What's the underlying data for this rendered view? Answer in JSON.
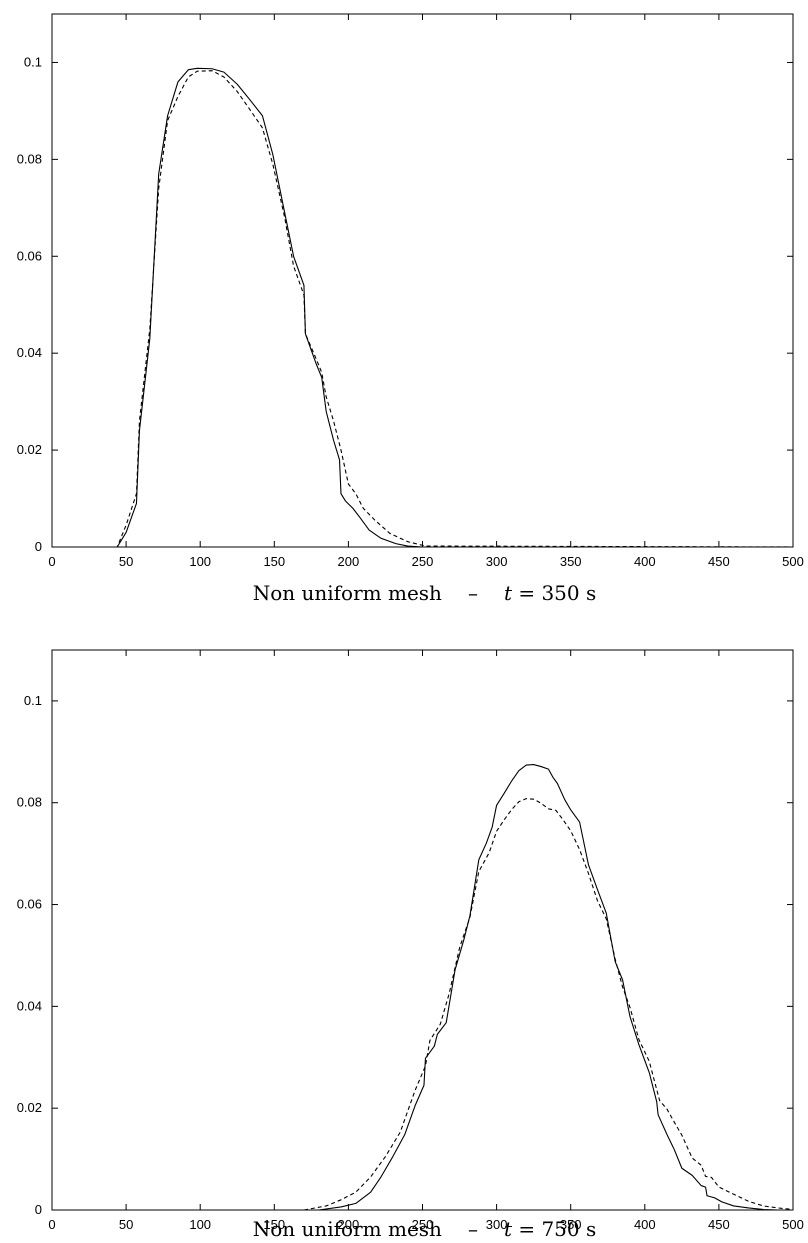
{
  "chart_data": [
    {
      "type": "line",
      "title": "",
      "caption_parts": {
        "left": "Non uniform mesh",
        "dash": "–",
        "var": "t",
        "eq": " = 350 s"
      },
      "xlabel": "",
      "ylabel": "",
      "xlim": [
        0,
        500
      ],
      "ylim": [
        0,
        0.11
      ],
      "xticks": [
        0,
        50,
        100,
        150,
        200,
        250,
        300,
        350,
        400,
        450,
        500
      ],
      "yticks": [
        0,
        0.02,
        0.04,
        0.06,
        0.08,
        0.1
      ],
      "ytick_labels": [
        "0",
        "0.02",
        "0.04",
        "0.06",
        "0.08",
        "0.1"
      ],
      "grid": false,
      "series": [
        {
          "style": "solid",
          "x": [
            0,
            44,
            50,
            57,
            59,
            66,
            72,
            78,
            85,
            92,
            98,
            108,
            116,
            125,
            133,
            142,
            149,
            157,
            163,
            170,
            171,
            178,
            182,
            185,
            190,
            194,
            195,
            198,
            203,
            208,
            214,
            222,
            232,
            240,
            250,
            500
          ],
          "y": [
            0,
            0,
            0.003,
            0.009,
            0.024,
            0.043,
            0.077,
            0.089,
            0.096,
            0.0985,
            0.0988,
            0.0987,
            0.098,
            0.0955,
            0.0925,
            0.089,
            0.081,
            0.069,
            0.06,
            0.054,
            0.044,
            0.038,
            0.035,
            0.028,
            0.022,
            0.018,
            0.011,
            0.0095,
            0.008,
            0.006,
            0.0035,
            0.0018,
            0.0007,
            0.0002,
            0,
            0
          ]
        },
        {
          "style": "dashed",
          "x": [
            0,
            44,
            50,
            57,
            59,
            66,
            72,
            78,
            85,
            92,
            98,
            108,
            116,
            125,
            133,
            142,
            149,
            157,
            163,
            170,
            171,
            178,
            182,
            185,
            190,
            195,
            200,
            205,
            210,
            218,
            228,
            240,
            252,
            500
          ],
          "y": [
            0,
            0,
            0.0045,
            0.011,
            0.026,
            0.045,
            0.074,
            0.088,
            0.093,
            0.097,
            0.0982,
            0.0983,
            0.097,
            0.094,
            0.0905,
            0.0865,
            0.079,
            0.068,
            0.058,
            0.052,
            0.044,
            0.039,
            0.036,
            0.031,
            0.026,
            0.02,
            0.013,
            0.011,
            0.008,
            0.0055,
            0.0028,
            0.0011,
            0.0002,
            0
          ]
        }
      ]
    },
    {
      "type": "line",
      "title": "",
      "caption_parts": {
        "left": "Non uniform mesh",
        "dash": "–",
        "var": "t",
        "eq": " = 750 s"
      },
      "xlabel": "",
      "ylabel": "",
      "xlim": [
        0,
        500
      ],
      "ylim": [
        0,
        0.11
      ],
      "xticks": [
        0,
        50,
        100,
        150,
        200,
        250,
        300,
        350,
        400,
        450,
        500
      ],
      "yticks": [
        0,
        0.02,
        0.04,
        0.06,
        0.08,
        0.1
      ],
      "ytick_labels": [
        "0",
        "0.02",
        "0.04",
        "0.06",
        "0.08",
        "0.1"
      ],
      "grid": false,
      "series": [
        {
          "style": "solid",
          "x": [
            0,
            180,
            195,
            205,
            215,
            222,
            230,
            238,
            245,
            251,
            252,
            258,
            260,
            266,
            272,
            278,
            282,
            288,
            293,
            297,
            300,
            305,
            310,
            315,
            320,
            325,
            330,
            335,
            338,
            341,
            346,
            350,
            356,
            362,
            368,
            374,
            380,
            385,
            390,
            396,
            403,
            408,
            409,
            415,
            420,
            425,
            432,
            438,
            441,
            442,
            447,
            452,
            460,
            470,
            480,
            490,
            500
          ],
          "y": [
            0,
            0,
            0.0006,
            0.0013,
            0.0035,
            0.0065,
            0.0105,
            0.0148,
            0.0205,
            0.0245,
            0.0298,
            0.0322,
            0.0345,
            0.0368,
            0.0472,
            0.0532,
            0.0578,
            0.0688,
            0.072,
            0.0752,
            0.0795,
            0.0818,
            0.0842,
            0.0863,
            0.0874,
            0.0875,
            0.0871,
            0.0866,
            0.085,
            0.0838,
            0.0806,
            0.0786,
            0.0762,
            0.0678,
            0.063,
            0.0583,
            0.0488,
            0.0452,
            0.038,
            0.0325,
            0.027,
            0.0213,
            0.0187,
            0.0148,
            0.0118,
            0.0082,
            0.0068,
            0.0048,
            0.0045,
            0.0028,
            0.0024,
            0.0016,
            0.0008,
            0.0004,
            0.0001,
            0,
            0
          ]
        },
        {
          "style": "dashed",
          "x": [
            0,
            170,
            185,
            195,
            205,
            215,
            225,
            235,
            245,
            252,
            255,
            262,
            268,
            275,
            282,
            288,
            295,
            300,
            305,
            310,
            315,
            320,
            325,
            330,
            335,
            340,
            345,
            350,
            356,
            362,
            368,
            374,
            380,
            385,
            390,
            396,
            403,
            410,
            415,
            420,
            425,
            432,
            438,
            441,
            445,
            450,
            460,
            470,
            480,
            490,
            500
          ],
          "y": [
            0,
            0,
            0.0008,
            0.002,
            0.0035,
            0.0065,
            0.0105,
            0.0153,
            0.0235,
            0.0283,
            0.0333,
            0.0365,
            0.0425,
            0.0515,
            0.0575,
            0.0665,
            0.0702,
            0.0744,
            0.0766,
            0.0786,
            0.0802,
            0.0808,
            0.0807,
            0.0799,
            0.0788,
            0.0785,
            0.0766,
            0.0745,
            0.0708,
            0.0661,
            0.0608,
            0.0572,
            0.0493,
            0.0438,
            0.0398,
            0.0335,
            0.0292,
            0.0215,
            0.0198,
            0.0172,
            0.0147,
            0.0102,
            0.0088,
            0.0066,
            0.0064,
            0.0045,
            0.0031,
            0.0017,
            0.0008,
            0.0004,
            0.0001
          ]
        }
      ]
    }
  ]
}
